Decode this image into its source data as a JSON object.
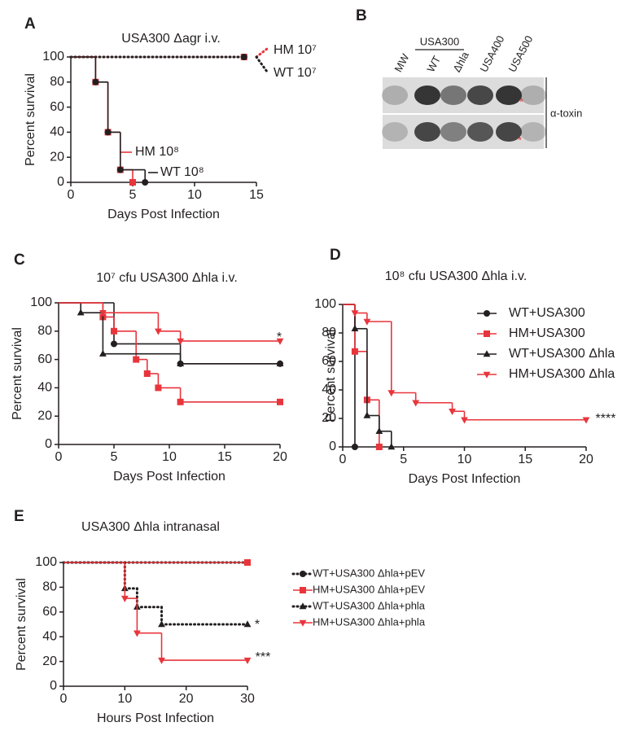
{
  "chart_data": [
    {
      "panel": "A",
      "type": "survival",
      "title": "USA300 Δagr i.v.",
      "x_label": "Days Post Infection",
      "y_label": "Percent survival",
      "xlim": [
        0,
        15
      ],
      "xticks": [
        0,
        5,
        10,
        15
      ],
      "ylim": [
        0,
        100
      ],
      "yticks": [
        0,
        20,
        40,
        60,
        80,
        100
      ],
      "series": [
        {
          "name": "HM 10⁷",
          "color": "#e8353c",
          "marker": "square",
          "dashed": true,
          "x": [
            0,
            14
          ],
          "values": [
            100,
            100
          ]
        },
        {
          "name": "WT 10⁷",
          "color": "#231f20",
          "marker": "circle",
          "dashed": true,
          "x": [
            0,
            14
          ],
          "values": [
            100,
            100
          ]
        },
        {
          "name": "HM 10⁸",
          "color": "#e8353c",
          "marker": "square",
          "dashed": false,
          "x": [
            0,
            2,
            3,
            4,
            5
          ],
          "values": [
            100,
            80,
            40,
            10,
            0
          ]
        },
        {
          "name": "WT 10⁸",
          "color": "#231f20",
          "marker": "circle",
          "dashed": false,
          "x": [
            0,
            2,
            3,
            4,
            6
          ],
          "values": [
            100,
            80,
            40,
            10,
            0
          ]
        }
      ]
    },
    {
      "panel": "B",
      "type": "blot",
      "lanes": [
        "MW",
        "WT",
        "Δhla",
        "USA400",
        "USA500"
      ],
      "group_label": "USA300",
      "band_label": "α-toxin",
      "annotations": [
        "*",
        "*"
      ]
    },
    {
      "panel": "C",
      "type": "survival",
      "title": "10⁷ cfu USA300 Δhla i.v.",
      "x_label": "Days Post Infection",
      "y_label": "Percent survival",
      "xlim": [
        0,
        20
      ],
      "xticks": [
        0,
        5,
        10,
        15,
        20
      ],
      "ylim": [
        0,
        100
      ],
      "yticks": [
        0,
        20,
        40,
        60,
        80,
        100
      ],
      "series": [
        {
          "color": "#231f20",
          "marker": "circle",
          "dashed": false,
          "x": [
            0,
            5,
            11,
            20
          ],
          "values": [
            100,
            71,
            57,
            57
          ]
        },
        {
          "color": "#e8353c",
          "marker": "square",
          "dashed": false,
          "x": [
            0,
            4,
            5,
            7,
            8,
            9,
            11,
            20
          ],
          "values": [
            100,
            90,
            80,
            60,
            50,
            40,
            30,
            30
          ]
        },
        {
          "color": "#231f20",
          "marker": "triangle",
          "dashed": false,
          "x": [
            0,
            2,
            4,
            11,
            20
          ],
          "values": [
            100,
            93,
            64,
            57,
            57
          ]
        },
        {
          "color": "#e8353c",
          "marker": "triangle-down",
          "dashed": false,
          "x": [
            0,
            4,
            9,
            11,
            20
          ],
          "values": [
            100,
            93,
            80,
            73,
            73
          ]
        }
      ],
      "annotations": [
        "*"
      ]
    },
    {
      "panel": "D",
      "type": "survival",
      "title": "10⁸ cfu USA300 Δhla i.v.",
      "x_label": "Days Post Infection",
      "y_label": "Percent survival",
      "xlim": [
        0,
        20
      ],
      "xticks": [
        0,
        5,
        10,
        15,
        20
      ],
      "ylim": [
        0,
        100
      ],
      "yticks": [
        0,
        20,
        40,
        60,
        80,
        100
      ],
      "legend": "upper right",
      "series": [
        {
          "name": "WT+USA300",
          "color": "#231f20",
          "marker": "circle",
          "dashed": false,
          "x": [
            0,
            1
          ],
          "values": [
            100,
            0
          ]
        },
        {
          "name": "HM+USA300",
          "color": "#e8353c",
          "marker": "square",
          "dashed": false,
          "x": [
            0,
            1,
            2,
            3
          ],
          "values": [
            100,
            67,
            33,
            0
          ]
        },
        {
          "name": "WT+USA300 Δhla",
          "color": "#231f20",
          "marker": "triangle",
          "dashed": false,
          "x": [
            0,
            1,
            2,
            3,
            4
          ],
          "values": [
            100,
            83,
            22,
            11,
            0
          ]
        },
        {
          "name": "HM+USA300 Δhla",
          "color": "#e8353c",
          "marker": "triangle-down",
          "dashed": false,
          "x": [
            0,
            1,
            2,
            4,
            6,
            9,
            10,
            20
          ],
          "values": [
            100,
            94,
            88,
            38,
            31,
            25,
            19,
            19
          ]
        }
      ],
      "annotations": [
        "****"
      ]
    },
    {
      "panel": "E",
      "type": "survival",
      "title": "USA300 Δhla intranasal",
      "x_label": "Hours Post Infection",
      "y_label": "Percent survival",
      "xlim": [
        0,
        30
      ],
      "xticks": [
        0,
        10,
        20,
        30
      ],
      "ylim": [
        0,
        100
      ],
      "yticks": [
        0,
        20,
        40,
        60,
        80,
        100
      ],
      "legend": "right",
      "series": [
        {
          "name": "WT+USA300 Δhla+pEV",
          "color": "#231f20",
          "marker": "circle",
          "dashed": true,
          "x": [
            0,
            30
          ],
          "values": [
            100,
            100
          ]
        },
        {
          "name": "HM+USA300 Δhla+pEV",
          "color": "#e8353c",
          "marker": "square",
          "dashed": false,
          "x": [
            0,
            30
          ],
          "values": [
            100,
            100
          ]
        },
        {
          "name": "WT+USA300 Δhla+phla",
          "color": "#231f20",
          "marker": "triangle",
          "dashed": true,
          "x": [
            0,
            10,
            12,
            16,
            30
          ],
          "values": [
            100,
            79,
            64,
            50,
            50
          ]
        },
        {
          "name": "HM+USA300 Δhla+phla",
          "color": "#e8353c",
          "marker": "triangle-down",
          "dashed": false,
          "x": [
            0,
            10,
            12,
            16,
            30
          ],
          "values": [
            100,
            71,
            43,
            21,
            21
          ]
        }
      ],
      "annotations": [
        "*",
        "***"
      ]
    }
  ]
}
